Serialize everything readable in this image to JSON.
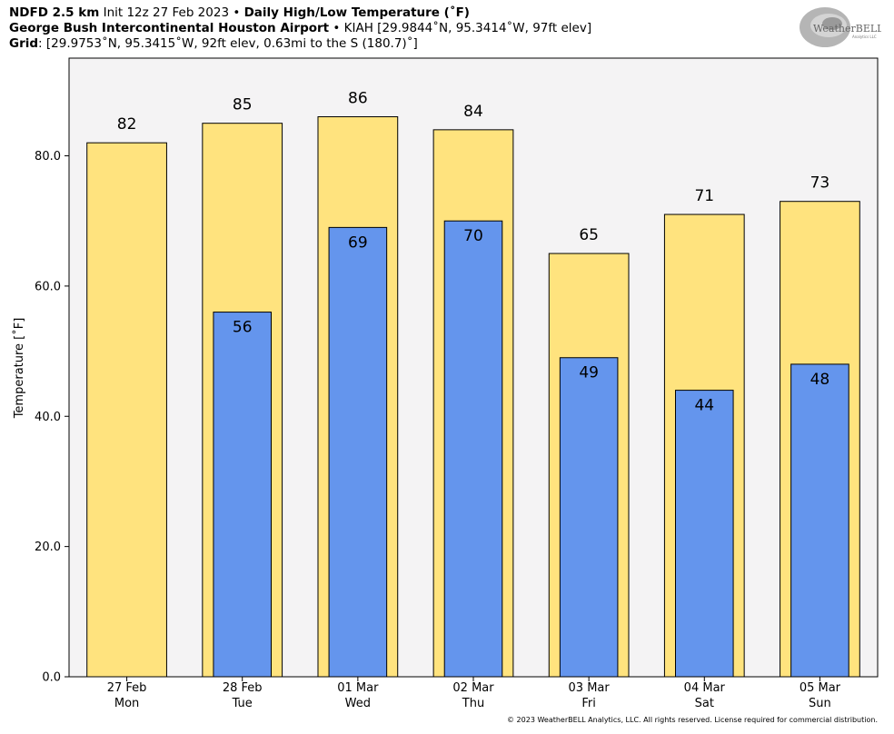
{
  "header": {
    "line1_model": "NDFD 2.5 km",
    "line1_init": " Init 12z 27 Feb 2023 • ",
    "line1_title": "Daily High/Low Temperature (˚F)",
    "line2_station": "George Bush Intercontinental Houston Airport",
    "line2_detail": " • KIAH [29.9844˚N, 95.3414˚W, 97ft elev]",
    "line3_label": "Grid",
    "line3_detail": ": [29.9753˚N, 95.3415˚W, 92ft elev, 0.63mi to the S (180.7)˚]"
  },
  "logo": {
    "text": "WeatherBELL",
    "subtext": "Analytics LLC"
  },
  "footer": "© 2023 WeatherBELL Analytics, LLC. All rights reserved. License required for commercial distribution.",
  "colors": {
    "high": "#ffe37e",
    "low": "#6495ed",
    "plot_bg": "#f4f3f4"
  },
  "chart_data": {
    "type": "bar",
    "title": "Daily High/Low Temperature (˚F)",
    "ylabel": "Temperature [˚F]",
    "xlabel": "",
    "ylim": [
      0,
      95
    ],
    "yticks": [
      0,
      20,
      40,
      60,
      80
    ],
    "ytick_labels": [
      "0.0",
      "20.0",
      "40.0",
      "60.0",
      "80.0"
    ],
    "categories": [
      "27 Feb\nMon",
      "28 Feb\nTue",
      "01 Mar\nWed",
      "02 Mar\nThu",
      "03 Mar\nFri",
      "04 Mar\nSat",
      "05 Mar\nSun"
    ],
    "series": [
      {
        "key": "high",
        "values": [
          82,
          85,
          86,
          84,
          65,
          71,
          73
        ]
      },
      {
        "key": "low",
        "values": [
          null,
          56,
          69,
          70,
          49,
          44,
          48
        ]
      }
    ],
    "grid": false,
    "legend": "none"
  }
}
